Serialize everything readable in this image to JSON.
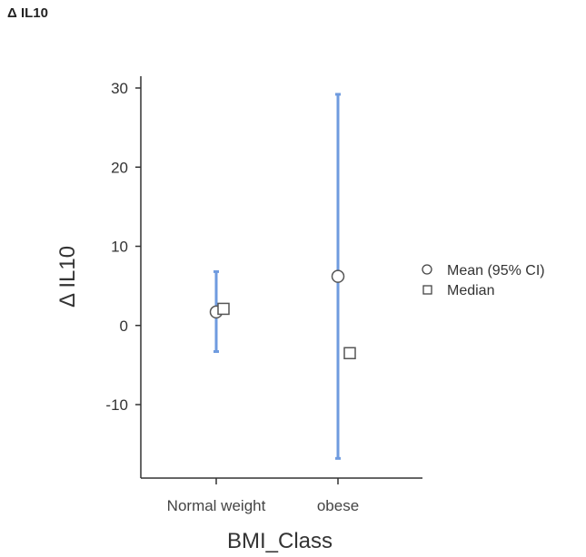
{
  "page_title": "Δ IL10",
  "chart_data": {
    "type": "scatter",
    "title": "",
    "xlabel": "BMI_Class",
    "ylabel": "Δ IL10",
    "categories": [
      "Normal weight",
      "obese"
    ],
    "ylim": [
      -19.5,
      31.5
    ],
    "yticks": [
      30,
      20,
      10,
      0,
      -10
    ],
    "series": [
      {
        "name": "Mean (95% CI)",
        "marker": "circle",
        "values": [
          1.7,
          6.2
        ],
        "ci_low": [
          -3.3,
          -16.8
        ],
        "ci_high": [
          6.8,
          29.2
        ]
      },
      {
        "name": "Median",
        "marker": "square",
        "values": [
          2.1,
          -3.5
        ]
      }
    ],
    "legend_position": "right",
    "colors": {
      "ci": "#6f9bdf",
      "axis": "#333333",
      "marker_edge": "#555555"
    }
  }
}
